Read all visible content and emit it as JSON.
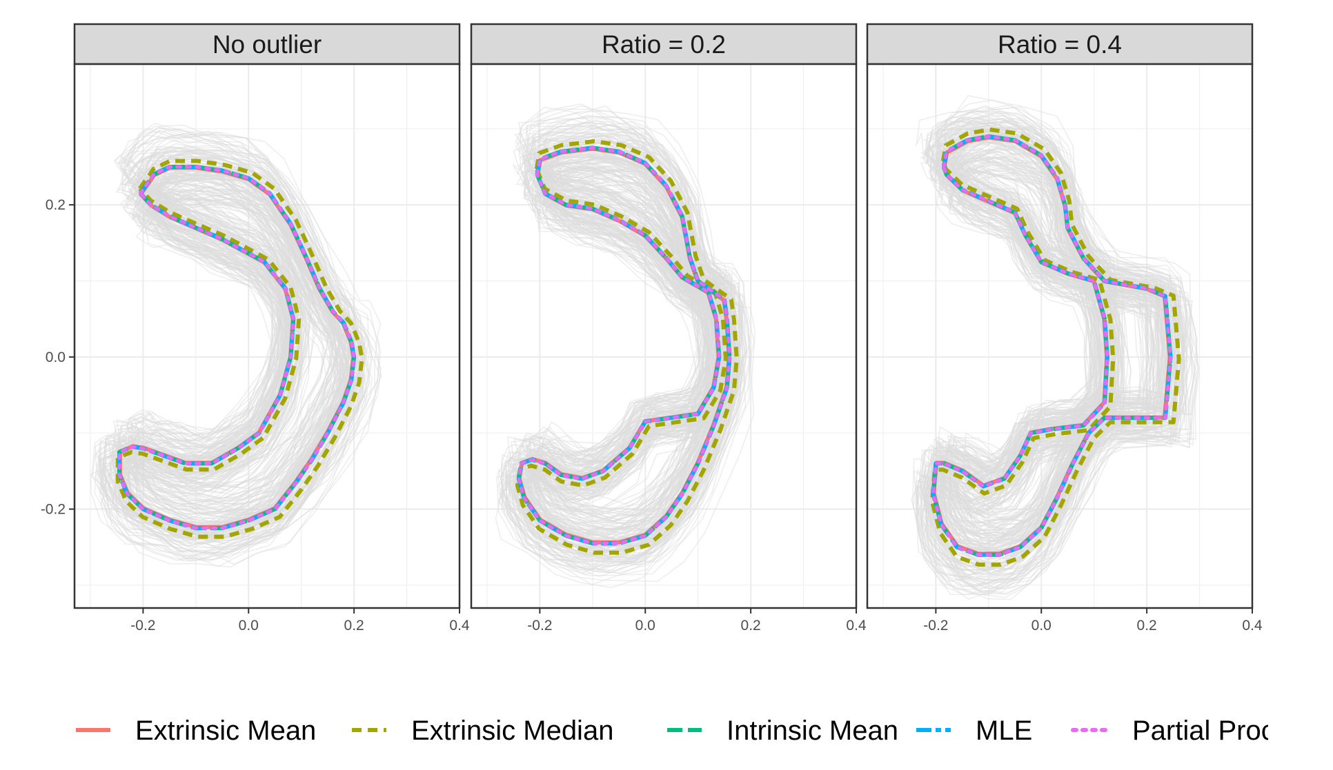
{
  "chart_data": {
    "type": "line",
    "description_free": true,
    "panels": [
      {
        "title": "No outlier",
        "xlim": [
          -0.33,
          0.4
        ],
        "ylim": [
          -0.33,
          0.385
        ],
        "reference_shape": [
          [
            -0.205,
            0.215
          ],
          [
            -0.18,
            0.24
          ],
          [
            -0.15,
            0.25
          ],
          [
            -0.1,
            0.25
          ],
          [
            -0.05,
            0.245
          ],
          [
            0.0,
            0.235
          ],
          [
            0.04,
            0.215
          ],
          [
            0.08,
            0.175
          ],
          [
            0.11,
            0.13
          ],
          [
            0.135,
            0.09
          ],
          [
            0.16,
            0.06
          ],
          [
            0.18,
            0.045
          ],
          [
            0.195,
            0.02
          ],
          [
            0.2,
            0.0
          ],
          [
            0.195,
            -0.03
          ],
          [
            0.18,
            -0.06
          ],
          [
            0.15,
            -0.1
          ],
          [
            0.12,
            -0.135
          ],
          [
            0.09,
            -0.165
          ],
          [
            0.05,
            -0.2
          ],
          [
            0.0,
            -0.215
          ],
          [
            -0.05,
            -0.225
          ],
          [
            -0.1,
            -0.225
          ],
          [
            -0.15,
            -0.215
          ],
          [
            -0.2,
            -0.2
          ],
          [
            -0.23,
            -0.18
          ],
          [
            -0.245,
            -0.155
          ],
          [
            -0.245,
            -0.125
          ],
          [
            -0.22,
            -0.118
          ],
          [
            -0.2,
            -0.12
          ],
          [
            -0.16,
            -0.13
          ],
          [
            -0.12,
            -0.14
          ],
          [
            -0.07,
            -0.14
          ],
          [
            -0.02,
            -0.12
          ],
          [
            0.02,
            -0.1
          ],
          [
            0.06,
            -0.05
          ],
          [
            0.08,
            0.0
          ],
          [
            0.085,
            0.05
          ],
          [
            0.07,
            0.09
          ],
          [
            0.03,
            0.125
          ],
          [
            -0.01,
            0.14
          ],
          [
            -0.05,
            0.155
          ],
          [
            -0.1,
            0.17
          ],
          [
            -0.15,
            0.185
          ],
          [
            -0.185,
            0.2
          ],
          [
            -0.205,
            0.215
          ]
        ],
        "xticks": [
          -0.2,
          0.0,
          0.2,
          0.4
        ],
        "yticks": [
          -0.2,
          0.0,
          0.2
        ]
      },
      {
        "title": "Ratio = 0.2",
        "xlim": [
          -0.33,
          0.4
        ],
        "ylim": [
          -0.33,
          0.385
        ],
        "reference_shape": [
          [
            -0.205,
            0.24
          ],
          [
            -0.2,
            0.26
          ],
          [
            -0.16,
            0.27
          ],
          [
            -0.1,
            0.275
          ],
          [
            -0.05,
            0.27
          ],
          [
            0.0,
            0.255
          ],
          [
            0.04,
            0.225
          ],
          [
            0.07,
            0.185
          ],
          [
            0.085,
            0.13
          ],
          [
            0.1,
            0.1
          ],
          [
            0.13,
            0.085
          ],
          [
            0.15,
            0.075
          ],
          [
            0.155,
            0.05
          ],
          [
            0.16,
            0.0
          ],
          [
            0.155,
            -0.04
          ],
          [
            0.13,
            -0.09
          ],
          [
            0.1,
            -0.14
          ],
          [
            0.07,
            -0.18
          ],
          [
            0.04,
            -0.21
          ],
          [
            0.0,
            -0.235
          ],
          [
            -0.05,
            -0.245
          ],
          [
            -0.1,
            -0.245
          ],
          [
            -0.15,
            -0.235
          ],
          [
            -0.2,
            -0.215
          ],
          [
            -0.23,
            -0.185
          ],
          [
            -0.24,
            -0.16
          ],
          [
            -0.235,
            -0.14
          ],
          [
            -0.215,
            -0.135
          ],
          [
            -0.19,
            -0.14
          ],
          [
            -0.16,
            -0.155
          ],
          [
            -0.12,
            -0.16
          ],
          [
            -0.08,
            -0.15
          ],
          [
            -0.03,
            -0.12
          ],
          [
            0.0,
            -0.085
          ],
          [
            0.05,
            -0.08
          ],
          [
            0.1,
            -0.075
          ],
          [
            0.13,
            -0.04
          ],
          [
            0.14,
            0.0
          ],
          [
            0.135,
            0.05
          ],
          [
            0.12,
            0.085
          ],
          [
            0.07,
            0.105
          ],
          [
            0.04,
            0.13
          ],
          [
            0.0,
            0.16
          ],
          [
            -0.05,
            0.18
          ],
          [
            -0.1,
            0.195
          ],
          [
            -0.15,
            0.2
          ],
          [
            -0.19,
            0.215
          ],
          [
            -0.205,
            0.24
          ]
        ],
        "xticks": [
          -0.2,
          0.0,
          0.2,
          0.4
        ],
        "yticks": [
          -0.2,
          0.0,
          0.2
        ]
      },
      {
        "title": "Ratio = 0.4",
        "xlim": [
          -0.33,
          0.4
        ],
        "ylim": [
          -0.33,
          0.385
        ],
        "reference_shape": [
          [
            -0.185,
            0.25
          ],
          [
            -0.18,
            0.27
          ],
          [
            -0.14,
            0.285
          ],
          [
            -0.1,
            0.29
          ],
          [
            -0.05,
            0.285
          ],
          [
            0.0,
            0.265
          ],
          [
            0.03,
            0.235
          ],
          [
            0.045,
            0.2
          ],
          [
            0.05,
            0.17
          ],
          [
            0.08,
            0.13
          ],
          [
            0.12,
            0.1
          ],
          [
            0.2,
            0.09
          ],
          [
            0.235,
            0.08
          ],
          [
            0.24,
            0.04
          ],
          [
            0.245,
            0.0
          ],
          [
            0.24,
            -0.04
          ],
          [
            0.235,
            -0.08
          ],
          [
            0.2,
            -0.08
          ],
          [
            0.12,
            -0.08
          ],
          [
            0.09,
            -0.1
          ],
          [
            0.06,
            -0.14
          ],
          [
            0.03,
            -0.185
          ],
          [
            0.0,
            -0.225
          ],
          [
            -0.04,
            -0.25
          ],
          [
            -0.08,
            -0.26
          ],
          [
            -0.12,
            -0.26
          ],
          [
            -0.16,
            -0.25
          ],
          [
            -0.19,
            -0.22
          ],
          [
            -0.205,
            -0.18
          ],
          [
            -0.2,
            -0.14
          ],
          [
            -0.185,
            -0.14
          ],
          [
            -0.15,
            -0.15
          ],
          [
            -0.11,
            -0.17
          ],
          [
            -0.07,
            -0.16
          ],
          [
            -0.04,
            -0.13
          ],
          [
            -0.02,
            -0.1
          ],
          [
            0.02,
            -0.095
          ],
          [
            0.08,
            -0.09
          ],
          [
            0.12,
            -0.06
          ],
          [
            0.125,
            0.0
          ],
          [
            0.12,
            0.05
          ],
          [
            0.1,
            0.1
          ],
          [
            0.05,
            0.11
          ],
          [
            0.0,
            0.125
          ],
          [
            -0.03,
            0.16
          ],
          [
            -0.05,
            0.19
          ],
          [
            -0.1,
            0.205
          ],
          [
            -0.15,
            0.22
          ],
          [
            -0.18,
            0.24
          ],
          [
            -0.185,
            0.25
          ]
        ],
        "xticks": [
          -0.2,
          0.0,
          0.2,
          0.4
        ],
        "yticks": [
          -0.2,
          0.0,
          0.2
        ]
      }
    ],
    "x_tick_labels": [
      "-0.2",
      "0.0",
      "0.2",
      "0.4"
    ],
    "y_tick_labels": [
      "-0.2",
      "0.0",
      "0.2"
    ],
    "series": [
      {
        "name": "Extrinsic Mean",
        "color": "#F8766D",
        "dash": "solid"
      },
      {
        "name": "Extrinsic Median",
        "color": "#A3A500",
        "dash": "dashed"
      },
      {
        "name": "Intrinsic Mean",
        "color": "#00BF7D",
        "dash": "longdash"
      },
      {
        "name": "MLE",
        "color": "#00B0F6",
        "dash": "twodash"
      },
      {
        "name": "Partial Proc",
        "color": "#E76BF3",
        "dash": "dotted"
      }
    ],
    "background_color": "#E3E3E3",
    "grid": true,
    "legend_position": "bottom"
  }
}
